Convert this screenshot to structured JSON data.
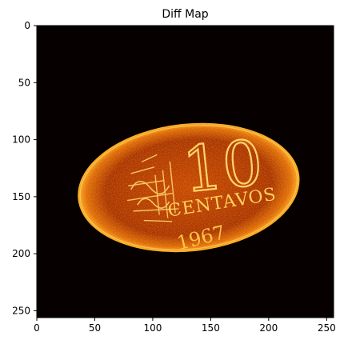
{
  "chart_data": {
    "type": "heatmap",
    "title": "Diff Map",
    "xlabel": "",
    "ylabel": "",
    "colormap": "hot",
    "xlim": [
      0,
      256
    ],
    "ylim": [
      256,
      0
    ],
    "x_ticks": [
      0,
      50,
      100,
      150,
      200,
      250
    ],
    "y_ticks": [
      0,
      50,
      100,
      150,
      200,
      250
    ],
    "grid": false,
    "background_color": "#070000",
    "image_content": {
      "text": [
        "10",
        "CENTAVOS",
        "1967"
      ],
      "coin_center": [
        131,
        142
      ],
      "coin_radius": [
        96,
        56
      ]
    }
  }
}
